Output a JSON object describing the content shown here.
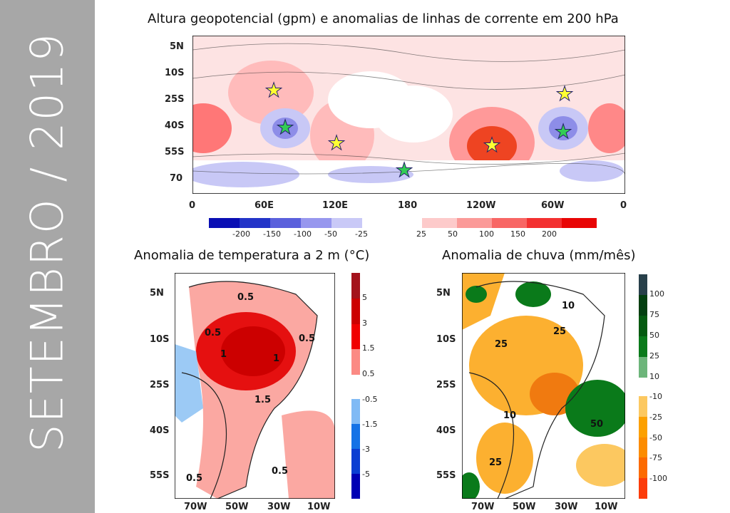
{
  "sidebar": {
    "title": "SETEMBRO / 2019"
  },
  "top_map": {
    "title": "Altura geopotencial (gpm) e anomalias de linhas de corrente em 200 hPa",
    "lat_labels": [
      "5N",
      "10S",
      "25S",
      "40S",
      "55S",
      "70"
    ],
    "lon_labels": [
      "0",
      "60E",
      "120E",
      "180",
      "120W",
      "60W",
      "0"
    ],
    "colorbar": {
      "negative_labels": [
        "-200",
        "-150",
        "-100",
        "-50",
        "-25"
      ],
      "positive_labels": [
        "25",
        "50",
        "100",
        "150",
        "200"
      ],
      "negative_colors": [
        "#0a0fb4",
        "#2334c8",
        "#5a60dc",
        "#9797ee",
        "#c9c9f7"
      ],
      "positive_colors": [
        "#fdcaca",
        "#fb9a98",
        "#f86664",
        "#f33030",
        "#e80505"
      ]
    },
    "stars": {
      "yellow": 4,
      "green": 3
    }
  },
  "temp_map": {
    "title": "Anomalia de temperatura a 2 m  (°C)",
    "lat_labels": [
      "5N",
      "10S",
      "25S",
      "40S",
      "55S"
    ],
    "lon_labels": [
      "70W",
      "50W",
      "30W",
      "10W"
    ],
    "contour_labels": [
      "0.5",
      "0.5",
      "0.5",
      "1",
      "1",
      "1.5",
      "0.5",
      "0.5"
    ],
    "colorbar": {
      "positive_labels": [
        "5",
        "3",
        "1.5",
        "0.5"
      ],
      "negative_labels": [
        "-0.5",
        "-1.5",
        "-3",
        "-5"
      ],
      "positive_colors": [
        "#a4131c",
        "#cc0000",
        "#f00000",
        "#fb8a84"
      ],
      "negative_colors": [
        "#80baf5",
        "#1472e6",
        "#0a3ed2",
        "#0000b4"
      ]
    }
  },
  "rain_map": {
    "title": "Anomalia de chuva   (mm/mês)",
    "lat_labels": [
      "5N",
      "10S",
      "25S",
      "40S",
      "55S"
    ],
    "lon_labels": [
      "70W",
      "50W",
      "30W",
      "10W"
    ],
    "contour_labels": [
      "10",
      "25",
      "25",
      "10",
      "50",
      "25"
    ],
    "colorbar": {
      "positive_labels": [
        "100",
        "75",
        "50",
        "25",
        "10"
      ],
      "negative_labels": [
        "-10",
        "-25",
        "-50",
        "-75",
        "-100"
      ],
      "positive_colors": [
        "#28404a",
        "#033f10",
        "#045a10",
        "#0a7a1a",
        "#6db57a"
      ],
      "negative_colors": [
        "#fcc860",
        "#fca000",
        "#fc8c00",
        "#fc6a00",
        "#fc3c0a"
      ]
    }
  }
}
